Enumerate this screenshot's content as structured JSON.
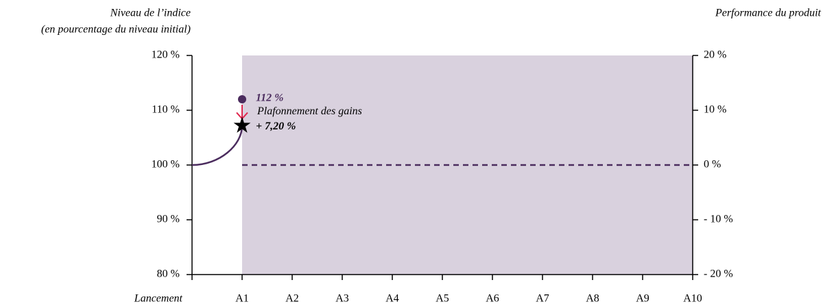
{
  "chart_data": {
    "type": "line",
    "ylabel": [
      "Niveau de l’indice",
      "(en pourcentage du niveau initial)"
    ],
    "y2label": "Performance du produit",
    "categories": [
      "Lancement",
      "A1",
      "A2",
      "A3",
      "A4",
      "A5",
      "A6",
      "A7",
      "A8",
      "A9",
      "A10"
    ],
    "series": [
      {
        "color": "#4b2c5e",
        "axis": "y2",
        "values": [
          0,
          7.2,
          null,
          null,
          null,
          null,
          null,
          null,
          null,
          null,
          null
        ]
      }
    ],
    "ylim": [
      80,
      120
    ],
    "yticks": [
      {
        "value": 80,
        "label": "80 %"
      },
      {
        "value": 90,
        "label": "90 %"
      },
      {
        "value": 100,
        "label": "100 %"
      },
      {
        "value": 110,
        "label": "110 %"
      },
      {
        "value": 120,
        "label": "120 %"
      }
    ],
    "y2lim": [
      -20,
      20
    ],
    "y2ticks": [
      {
        "value": -20,
        "label": "- 20 %"
      },
      {
        "value": -10,
        "label": "- 10 %"
      },
      {
        "value": 0,
        "label": "0 %"
      },
      {
        "value": 10,
        "label": "10 %"
      },
      {
        "value": 20,
        "label": "20 %"
      }
    ],
    "reference_line": {
      "value": 0,
      "axis": "y2",
      "color": "#4b2c5e"
    },
    "index_point": {
      "value": 112,
      "label": "112 %",
      "color": "#4b2c5e"
    },
    "cap": {
      "value": 7.2,
      "label": "+ 7,20 %",
      "text": "Plafonnement des gains",
      "arrow_color": "#e0284f"
    },
    "shade_color": "#d9d1de"
  }
}
